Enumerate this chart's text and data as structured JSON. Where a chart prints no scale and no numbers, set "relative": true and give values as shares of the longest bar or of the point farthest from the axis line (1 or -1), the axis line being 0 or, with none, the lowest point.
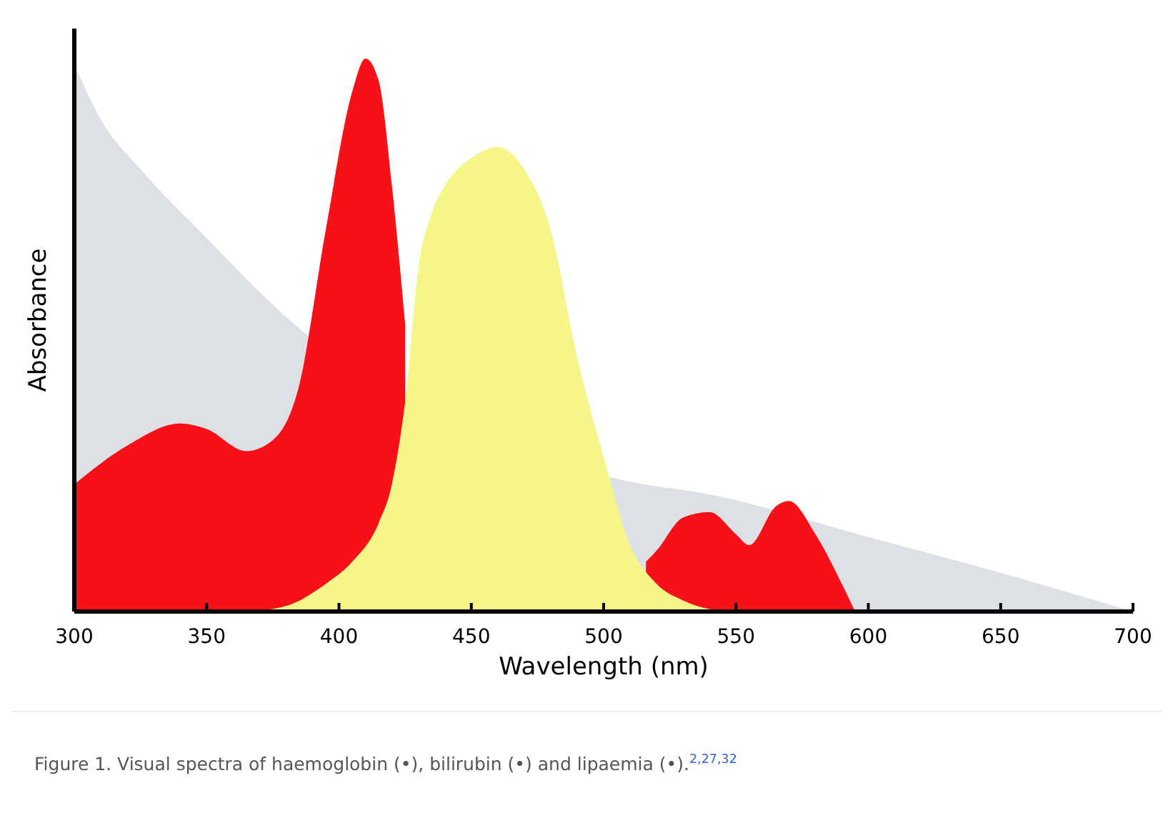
{
  "chart_data": {
    "type": "area",
    "relative": true,
    "xlabel": "Wavelength (nm)",
    "ylabel": "Absorbance",
    "xlim": [
      300,
      700
    ],
    "xticks": [
      300,
      350,
      400,
      450,
      500,
      550,
      600,
      650,
      700
    ],
    "grid": false,
    "annotations": [
      "Figure 1. Visual spectra of haemoglobin (•), bilirubin (•) and lipaemia (•).$^{2,27,32}$"
    ],
    "series": [
      {
        "color": "#dde1e6",
        "x": [
          300,
          310,
          325,
          347,
          383,
          505,
          542,
          596,
          650,
          700
        ],
        "values": [
          0.99,
          0.89,
          0.8,
          0.69,
          0.52,
          0.24,
          0.21,
          0.14,
          0.07,
          0
        ]
      },
      {
        "color": "#f61018",
        "x": [
          300,
          320,
          340,
          350,
          365,
          375,
          385,
          395,
          405,
          410,
          415,
          420,
          425,
          430,
          470,
          510,
          516,
          520,
          530,
          540,
          550,
          555,
          565,
          570,
          580,
          590,
          595
        ],
        "values": [
          0.23,
          0.3,
          0.34,
          0.33,
          0.29,
          0.31,
          0.41,
          0.69,
          0.94,
          1,
          0.96,
          0.77,
          0.52,
          null,
          null,
          null,
          0.09,
          0.11,
          0.17,
          0.18,
          0.14,
          0.12,
          0.19,
          0.2,
          0.14,
          0.05,
          0
        ]
      },
      {
        "color": "#f5f58a",
        "x": [
          365,
          380,
          395,
          405,
          415,
          420,
          425,
          430,
          435,
          440,
          450,
          460,
          470,
          480,
          490,
          500,
          510,
          520,
          530,
          545
        ],
        "values": [
          0,
          0.01,
          0.05,
          0.09,
          0.16,
          0.23,
          0.38,
          0.62,
          0.72,
          0.77,
          0.82,
          0.84,
          0.8,
          0.69,
          0.46,
          0.28,
          0.12,
          0.05,
          0.02,
          0
        ]
      }
    ]
  }
}
